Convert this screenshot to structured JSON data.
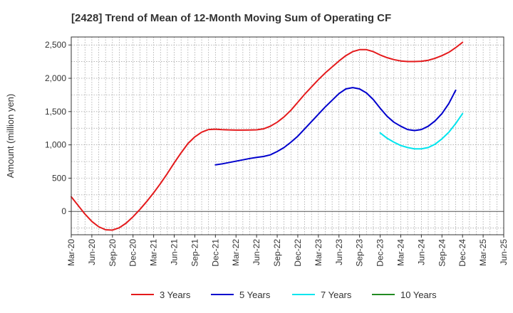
{
  "chart_data": {
    "type": "line",
    "title": "[2428]  Trend of Mean of 12-Month Moving Sum of Operating CF",
    "xlabel": "",
    "ylabel": "Amount (million yen)",
    "ylim": [
      -350,
      2620
    ],
    "yticks": [
      0,
      500,
      1000,
      1500,
      2000,
      2500
    ],
    "ytick_labels": [
      "0",
      "500",
      "1,000",
      "1,500",
      "2,000",
      "2,500"
    ],
    "x_tick_labels": [
      "Mar-20",
      "Jun-20",
      "Sep-20",
      "Dec-20",
      "Mar-21",
      "Jun-21",
      "Sep-21",
      "Dec-21",
      "Mar-22",
      "Jun-22",
      "Sep-22",
      "Dec-22",
      "Mar-23",
      "Jun-23",
      "Sep-23",
      "Dec-23",
      "Mar-24",
      "Jun-24",
      "Sep-24",
      "Dec-24",
      "Mar-25",
      "Jun-25"
    ],
    "x_months": [
      "2020-03",
      "2020-04",
      "2020-05",
      "2020-06",
      "2020-07",
      "2020-08",
      "2020-09",
      "2020-10",
      "2020-11",
      "2020-12",
      "2021-01",
      "2021-02",
      "2021-03",
      "2021-04",
      "2021-05",
      "2021-06",
      "2021-07",
      "2021-08",
      "2021-09",
      "2021-10",
      "2021-11",
      "2021-12",
      "2022-01",
      "2022-02",
      "2022-03",
      "2022-04",
      "2022-05",
      "2022-06",
      "2022-07",
      "2022-08",
      "2022-09",
      "2022-10",
      "2022-11",
      "2022-12",
      "2023-01",
      "2023-02",
      "2023-03",
      "2023-04",
      "2023-05",
      "2023-06",
      "2023-07",
      "2023-08",
      "2023-09",
      "2023-10",
      "2023-11",
      "2023-12",
      "2024-01",
      "2024-02",
      "2024-03",
      "2024-04",
      "2024-05",
      "2024-06",
      "2024-07",
      "2024-08",
      "2024-09",
      "2024-10",
      "2024-11",
      "2024-12"
    ],
    "grid": true,
    "legend_position": "bottom",
    "series": [
      {
        "name": "3 Years",
        "color": "#e41a1c",
        "start_index": 0,
        "values": [
          220,
          90,
          -40,
          -150,
          -230,
          -275,
          -280,
          -245,
          -175,
          -80,
          30,
          150,
          280,
          420,
          570,
          730,
          880,
          1020,
          1120,
          1190,
          1230,
          1235,
          1228,
          1224,
          1222,
          1222,
          1223,
          1226,
          1240,
          1280,
          1340,
          1420,
          1520,
          1640,
          1760,
          1870,
          1980,
          2080,
          2170,
          2260,
          2340,
          2400,
          2430,
          2430,
          2400,
          2350,
          2310,
          2280,
          2260,
          2252,
          2252,
          2255,
          2270,
          2300,
          2340,
          2390,
          2460,
          2540
        ]
      },
      {
        "name": "5 Years",
        "color": "#0000cd",
        "start_index": 21,
        "values": [
          700,
          715,
          735,
          755,
          775,
          795,
          812,
          825,
          850,
          900,
          960,
          1040,
          1130,
          1240,
          1350,
          1460,
          1570,
          1670,
          1770,
          1840,
          1860,
          1840,
          1780,
          1680,
          1550,
          1430,
          1340,
          1280,
          1230,
          1215,
          1230,
          1280,
          1360,
          1470,
          1620,
          1820
        ]
      },
      {
        "name": "7 Years",
        "color": "#00e5ee",
        "start_index": 45,
        "values": [
          1180,
          1100,
          1040,
          990,
          960,
          940,
          940,
          960,
          1010,
          1090,
          1190,
          1320,
          1470
        ]
      },
      {
        "name": "10 Years",
        "color": "#228b22",
        "start_index": 0,
        "values": []
      }
    ]
  }
}
